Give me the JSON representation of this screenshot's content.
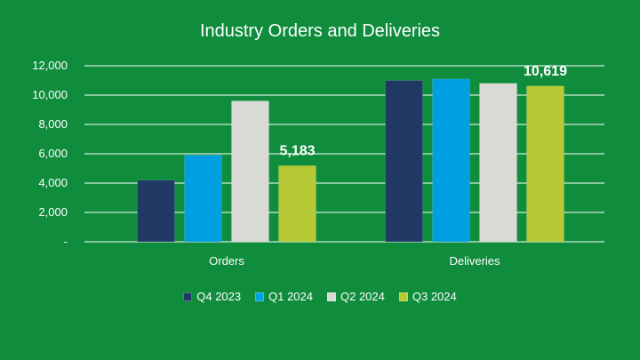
{
  "chart_data": {
    "type": "bar",
    "title": "Industry Orders and Deliveries",
    "xlabel": "",
    "ylabel": "",
    "categories": [
      "Orders",
      "Deliveries"
    ],
    "series": [
      {
        "name": "Q4 2023",
        "color": "#1f3864",
        "values": [
          4200,
          11000
        ]
      },
      {
        "name": "Q1 2024",
        "color": "#009fdf",
        "values": [
          5900,
          11100
        ]
      },
      {
        "name": "Q2 2024",
        "color": "#d9d9d6",
        "values": [
          9600,
          10800
        ]
      },
      {
        "name": "Q3 2024",
        "color": "#b5c935",
        "values": [
          5183,
          10619
        ]
      }
    ],
    "ylim": [
      0,
      12000
    ],
    "y_ticks": [
      "-",
      "2,000",
      "4,000",
      "6,000",
      "8,000",
      "10,000",
      "12,000"
    ],
    "y_tick_values": [
      0,
      2000,
      4000,
      6000,
      8000,
      10000,
      12000
    ],
    "data_labels": [
      {
        "series": 3,
        "category": 0,
        "text": "5,183"
      },
      {
        "series": 3,
        "category": 1,
        "text": "10,619"
      }
    ],
    "grid": true,
    "legend_position": "bottom"
  },
  "colors": {
    "background": "#0f8c3c",
    "gridline": "#ffffff",
    "text": "#ffffff"
  }
}
